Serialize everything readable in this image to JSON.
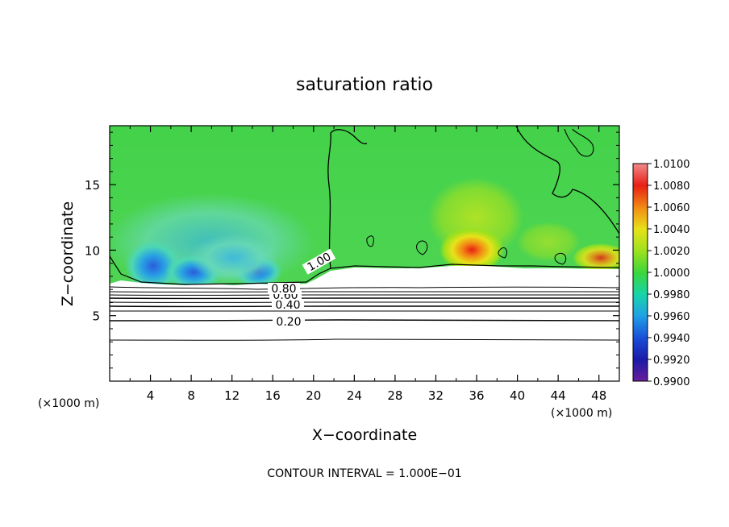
{
  "chart_data": {
    "type": "heatmap",
    "title": "saturation ratio",
    "xlabel": "X−coordinate",
    "ylabel": "Z−coordinate",
    "x_unit_left": "(×1000 m)",
    "x_unit_right": "(×1000 m)",
    "footer": "CONTOUR INTERVAL = 1.000E−01",
    "xlim": [
      0,
      50
    ],
    "ylim": [
      0,
      19.5
    ],
    "x_ticks": [
      4,
      8,
      12,
      16,
      20,
      24,
      28,
      32,
      36,
      40,
      44,
      48
    ],
    "y_ticks": [
      5,
      10,
      15
    ],
    "colorbar": {
      "levels": [
        "0.9900",
        "0.9920",
        "0.9940",
        "0.9960",
        "0.9980",
        "1.0000",
        "1.0020",
        "1.0040",
        "1.0060",
        "1.0080",
        "1.0100"
      ],
      "colors": [
        "#6a1e9a",
        "#1a1aa8",
        "#1a4fd8",
        "#1fa0e6",
        "#18d4a8",
        "#3cd63c",
        "#9ee11e",
        "#e7e21a",
        "#f28a14",
        "#e81e14",
        "#f08a8a"
      ]
    },
    "contour_labels": [
      "0.20",
      "0.40",
      "0.60",
      "0.80",
      "1.00"
    ]
  }
}
